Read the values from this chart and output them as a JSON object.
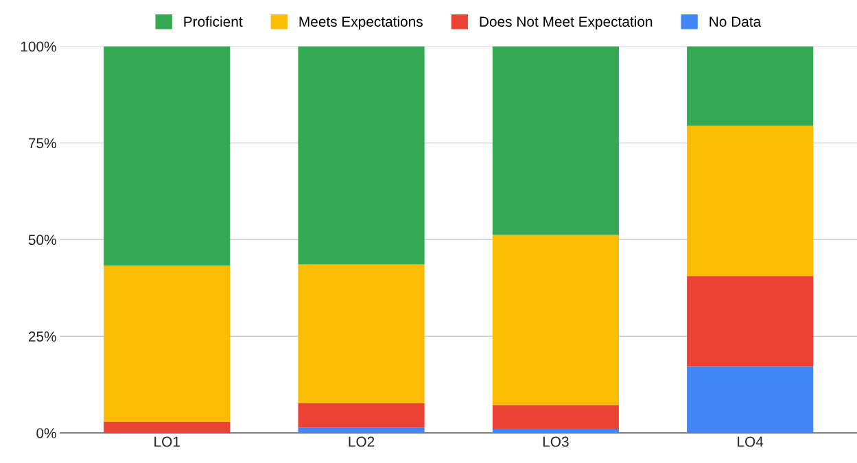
{
  "chart_data": {
    "type": "bar",
    "stacked": true,
    "categories": [
      "LO1",
      "LO2",
      "LO3",
      "LO4"
    ],
    "series": [
      {
        "name": "No Data",
        "color": "#4285f4",
        "values": [
          0,
          1.4,
          1.1,
          17.2
        ]
      },
      {
        "name": "Does Not Meet Expectation",
        "color": "#ea4335",
        "values": [
          2.9,
          6.3,
          6.1,
          23.4
        ]
      },
      {
        "name": "Meets Expectations",
        "color": "#fbbc04",
        "values": [
          40.4,
          35.9,
          44.0,
          38.8
        ]
      },
      {
        "name": "Proficient",
        "color": "#34a853",
        "values": [
          56.7,
          56.4,
          48.8,
          20.6
        ]
      }
    ],
    "ylim": [
      0,
      100
    ],
    "yticks": [
      {
        "value": 0,
        "label": "0%"
      },
      {
        "value": 25,
        "label": "25%"
      },
      {
        "value": 50,
        "label": "50%"
      },
      {
        "value": 75,
        "label": "75%"
      },
      {
        "value": 100,
        "label": "100%"
      }
    ],
    "grid": "y",
    "legend": "top"
  }
}
